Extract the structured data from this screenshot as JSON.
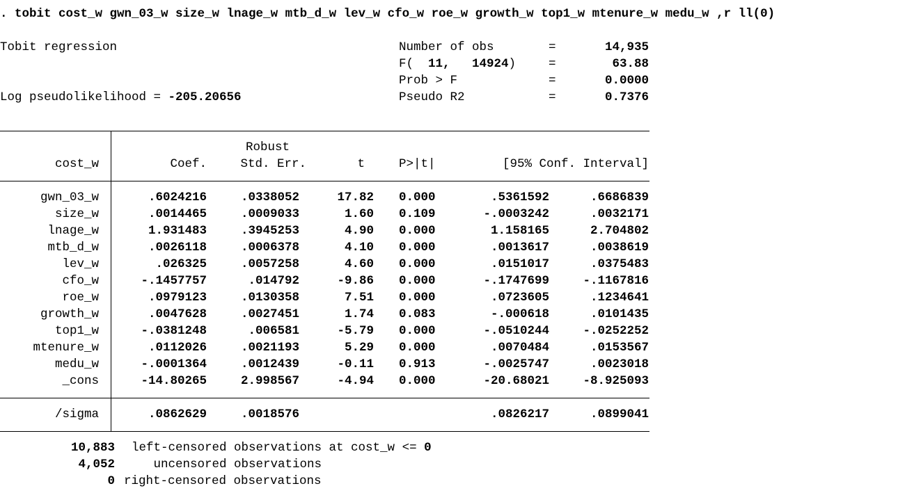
{
  "command": ". tobit cost_w gwn_03_w size_w lnage_w mtb_d_w lev_w cfo_w roe_w growth_w top1_w mtenure_w medu_w ,r ll(0)",
  "header": {
    "title": "Tobit regression",
    "loglik_label": "Log pseudolikelihood = ",
    "loglik_value": "-205.20656",
    "stats": [
      {
        "label": "Number of obs",
        "eq": "=",
        "value": "14,935",
        "label_bold": ""
      },
      {
        "label": "F(",
        "label_bold": "  11,   14924",
        "label_tail": ")",
        "eq": "=",
        "value": "63.88"
      },
      {
        "label": "Prob > F",
        "eq": "=",
        "value": "0.0000",
        "label_bold": ""
      },
      {
        "label": "Pseudo R2",
        "eq": "=",
        "value": "0.7376",
        "label_bold": ""
      }
    ]
  },
  "table": {
    "depvar": "cost_w",
    "robust_label": "Robust",
    "columns": [
      "Coef.",
      "Std. Err.",
      "t",
      "P>|t|",
      "[95% Conf. Interval]"
    ],
    "rows": [
      {
        "name": "gwn_03_w",
        "coef": ".6024216",
        "se": ".0338052",
        "t": "17.82",
        "p": "0.000",
        "lo": ".5361592",
        "hi": ".6686839"
      },
      {
        "name": "size_w",
        "coef": ".0014465",
        "se": ".0009033",
        "t": "1.60",
        "p": "0.109",
        "lo": "-.0003242",
        "hi": ".0032171"
      },
      {
        "name": "lnage_w",
        "coef": "1.931483",
        "se": ".3945253",
        "t": "4.90",
        "p": "0.000",
        "lo": "1.158165",
        "hi": "2.704802"
      },
      {
        "name": "mtb_d_w",
        "coef": ".0026118",
        "se": ".0006378",
        "t": "4.10",
        "p": "0.000",
        "lo": ".0013617",
        "hi": ".0038619"
      },
      {
        "name": "lev_w",
        "coef": ".026325",
        "se": ".0057258",
        "t": "4.60",
        "p": "0.000",
        "lo": ".0151017",
        "hi": ".0375483"
      },
      {
        "name": "cfo_w",
        "coef": "-.1457757",
        "se": ".014792",
        "t": "-9.86",
        "p": "0.000",
        "lo": "-.1747699",
        "hi": "-.1167816"
      },
      {
        "name": "roe_w",
        "coef": ".0979123",
        "se": ".0130358",
        "t": "7.51",
        "p": "0.000",
        "lo": ".0723605",
        "hi": ".1234641"
      },
      {
        "name": "growth_w",
        "coef": ".0047628",
        "se": ".0027451",
        "t": "1.74",
        "p": "0.083",
        "lo": "-.000618",
        "hi": ".0101435"
      },
      {
        "name": "top1_w",
        "coef": "-.0381248",
        "se": ".006581",
        "t": "-5.79",
        "p": "0.000",
        "lo": "-.0510244",
        "hi": "-.0252252"
      },
      {
        "name": "mtenure_w",
        "coef": ".0112026",
        "se": ".0021193",
        "t": "5.29",
        "p": "0.000",
        "lo": ".0070484",
        "hi": ".0153567"
      },
      {
        "name": "medu_w",
        "coef": "-.0001364",
        "se": ".0012439",
        "t": "-0.11",
        "p": "0.913",
        "lo": "-.0025747",
        "hi": ".0023018"
      },
      {
        "name": "_cons",
        "coef": "-14.80265",
        "se": "2.998567",
        "t": "-4.94",
        "p": "0.000",
        "lo": "-20.68021",
        "hi": "-8.925093"
      }
    ],
    "sigma": {
      "name": "/sigma",
      "coef": ".0862629",
      "se": ".0018576",
      "lo": ".0826217",
      "hi": ".0899041"
    }
  },
  "footer": [
    {
      "count": "10,883",
      "text": "left-censored observations at cost_w <= ",
      "tail": "0"
    },
    {
      "count": "4,052",
      "text": "   uncensored observations",
      "tail": ""
    },
    {
      "count": "0",
      "text": "right-censored observations",
      "tail": ""
    }
  ]
}
